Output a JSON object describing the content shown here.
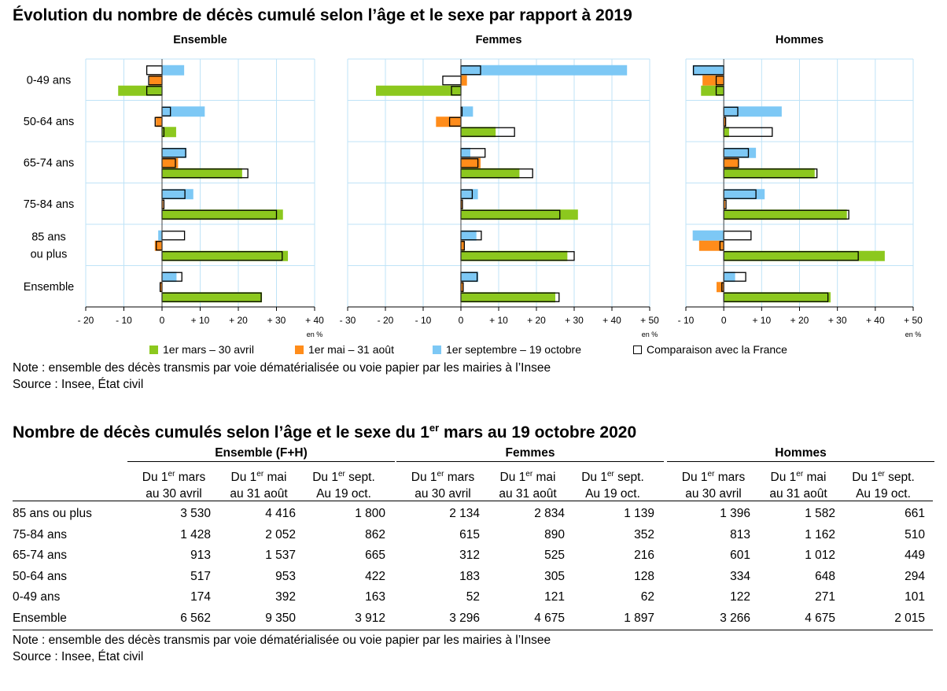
{
  "title": "Évolution du nombre de décès cumulé selon l’âge et le sexe par rapport à 2019",
  "chart_data": {
    "type": "bar",
    "orientation": "horizontal",
    "unit_label": "en %",
    "categories": [
      "0-49 ans",
      "50-64 ans",
      "65-74 ans",
      "75-84 ans",
      "85 ans\nou plus",
      "Ensemble"
    ],
    "category_lines": [
      [
        "0-49 ans"
      ],
      [
        "50-64 ans"
      ],
      [
        "65-74 ans"
      ],
      [
        "75-84 ans"
      ],
      [
        "85 ans",
        "ou plus"
      ],
      [
        "Ensemble"
      ]
    ],
    "legend": [
      {
        "name": "1er mars – 30 avril",
        "color": "#8cc81e"
      },
      {
        "name": "1er mai – 31 août",
        "color": "#ff8c1a"
      },
      {
        "name": "1er septembre – 19 octobre",
        "color": "#7dc8f5"
      },
      {
        "name": "Comparaison avec la France",
        "color": "#ffffff"
      }
    ],
    "panels": [
      {
        "title": "Ensemble",
        "xlim": [
          -20,
          40
        ],
        "xticks": [
          -20,
          -10,
          0,
          10,
          20,
          30,
          40
        ],
        "xtick_labels": [
          "- 20",
          "- 10",
          "0",
          "+ 10",
          "+ 20",
          "+ 30",
          "+ 40"
        ],
        "mars": [
          -11.5,
          3.7,
          21,
          31.7,
          33,
          26.2
        ],
        "mai": [
          -3.3,
          -1.6,
          4.2,
          0.3,
          -1.9,
          -0.5
        ],
        "sept": [
          5.8,
          11.2,
          6.4,
          8.2,
          -1,
          3.8
        ],
        "france_mars": [
          -4,
          0.5,
          22.5,
          30,
          31.5,
          26
        ],
        "france_mai": [
          -3.5,
          -1.8,
          3.5,
          0.5,
          -1.5,
          -0.5
        ],
        "france_sept": [
          -4,
          2.2,
          6.2,
          6,
          5.9,
          5.2
        ]
      },
      {
        "title": "Femmes",
        "xlim": [
          -30,
          50
        ],
        "xticks": [
          -30,
          -20,
          -10,
          0,
          10,
          20,
          30,
          40,
          50
        ],
        "xtick_labels": [
          "- 30",
          "- 20",
          "- 10",
          "0",
          "+ 10",
          "+ 20",
          "+ 30",
          "+ 40",
          "+ 50"
        ],
        "mars": [
          -22.5,
          9.2,
          15.5,
          31,
          28.2,
          25
        ],
        "mai": [
          1.6,
          -6.6,
          5.2,
          0.4,
          0.9,
          0.6
        ],
        "sept": [
          44,
          3.2,
          2.5,
          4.5,
          4.1,
          4.6
        ],
        "france_mars": [
          -2.5,
          14.2,
          19,
          26.2,
          30,
          26
        ],
        "france_mai": [
          -4.8,
          -3,
          4.5,
          0.4,
          0.9,
          0.6
        ],
        "france_sept": [
          5.2,
          0.3,
          6.4,
          3,
          5.4,
          4.3
        ]
      },
      {
        "title": "Hommes",
        "xlim": [
          -10,
          50
        ],
        "xticks": [
          -10,
          0,
          10,
          20,
          30,
          40,
          50
        ],
        "xtick_labels": [
          "- 10",
          "0",
          "+ 10",
          "+ 20",
          "+ 30",
          "+ 40",
          "+ 50"
        ],
        "mars": [
          -6,
          1.4,
          24,
          32.5,
          42.5,
          28.2
        ],
        "mai": [
          -5.6,
          0.4,
          4,
          0.4,
          -6.5,
          -1.9
        ],
        "sept": [
          -8.2,
          15.3,
          8.5,
          10.8,
          -8.2,
          3
        ],
        "france_mars": [
          -2,
          12.8,
          24.6,
          33,
          35.5,
          27.5
        ],
        "france_mai": [
          -2,
          0.5,
          3.9,
          0.6,
          -1,
          -0.5
        ],
        "france_sept": [
          -8,
          3.7,
          6.5,
          8.5,
          7.2,
          5.8
        ]
      }
    ]
  },
  "notes": {
    "note": "Note : ensemble des décès transmis par voie dématérialisée ou voie papier par les mairies à l’Insee",
    "source": "Source : Insee, État civil"
  },
  "table": {
    "title_main": "Nombre de décès cumulés selon l’âge et le sexe du 1",
    "title_sup": "er",
    "title_end": " mars au 19 octobre 2020",
    "groups": [
      "Ensemble (F+H)",
      "Femmes",
      "Hommes"
    ],
    "col_line1_pre": [
      "Du 1",
      "Du 1",
      "Du 1"
    ],
    "col_line1_sup": [
      "er",
      "er",
      "er"
    ],
    "col_line1_post": [
      " mars",
      " mai",
      " sept."
    ],
    "col_line2": [
      "au 30 avril",
      "au 31 août",
      "Au 19 oct."
    ],
    "rows": [
      {
        "label": "85 ans ou plus",
        "values": [
          "3 530",
          "4 416",
          "1 800",
          "2 134",
          "2 834",
          "1 139",
          "1 396",
          "1 582",
          "661"
        ]
      },
      {
        "label": "75-84 ans",
        "values": [
          "1 428",
          "2 052",
          "862",
          "615",
          "890",
          "352",
          "813",
          "1 162",
          "510"
        ]
      },
      {
        "label": "65-74 ans",
        "values": [
          "913",
          "1 537",
          "665",
          "312",
          "525",
          "216",
          "601",
          "1 012",
          "449"
        ]
      },
      {
        "label": "50-64 ans",
        "values": [
          "517",
          "953",
          "422",
          "183",
          "305",
          "128",
          "334",
          "648",
          "294"
        ]
      },
      {
        "label": "0-49 ans",
        "values": [
          "174",
          "392",
          "163",
          "52",
          "121",
          "62",
          "122",
          "271",
          "101"
        ]
      },
      {
        "label": "Ensemble",
        "values": [
          "6 562",
          "9 350",
          "3 912",
          "3 296",
          "4 675",
          "1 897",
          "3 266",
          "4 675",
          "2 015"
        ]
      }
    ]
  }
}
